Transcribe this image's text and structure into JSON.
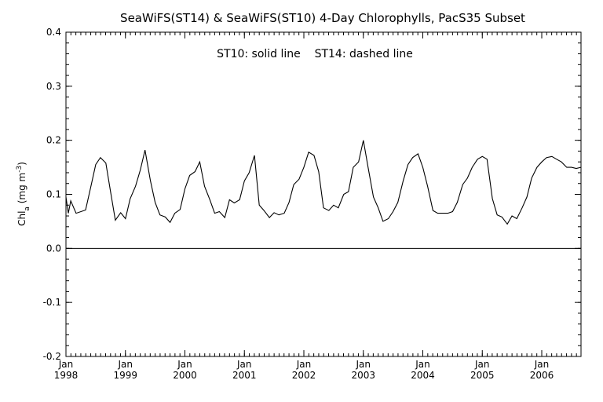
{
  "chart_data": {
    "type": "line",
    "title": "SeaWiFS(ST14) & SeaWiFS(ST10) 4-Day Chlorophylls, PacS35 Subset",
    "ylabel": "Chl",
    "ylabel_sub": "a",
    "ylabel_units_open": " (mg m",
    "ylabel_units_sup": "-3",
    "ylabel_units_close": ")",
    "xlabel": "",
    "annotation": "ST10: solid line    ST14: dashed line",
    "ylim": [
      -0.2,
      0.4
    ],
    "xlim": [
      1998.0,
      2006.66
    ],
    "y_ticks": [
      -0.2,
      -0.1,
      0.0,
      0.1,
      0.2,
      0.3,
      0.4
    ],
    "y_tick_labels": [
      "-0.2",
      "-0.1",
      "0.0",
      "0.1",
      "0.2",
      "0.3",
      "0.4"
    ],
    "x_ticks": [
      1998,
      1999,
      2000,
      2001,
      2002,
      2003,
      2004,
      2005,
      2006
    ],
    "x_tick_month": "Jan",
    "x_tick_labels": [
      "1998",
      "1999",
      "2000",
      "2001",
      "2002",
      "2003",
      "2004",
      "2005",
      "2006"
    ],
    "zero_line": 0.0,
    "grid": false,
    "series": [
      {
        "style": "solid",
        "x": [
          1998.0,
          1998.04,
          1998.08,
          1998.17,
          1998.33,
          1998.42,
          1998.5,
          1998.58,
          1998.67,
          1998.75,
          1998.83,
          1998.92,
          1999.0,
          1999.08,
          1999.17,
          1999.25,
          1999.33,
          1999.42,
          1999.5,
          1999.58,
          1999.67,
          1999.75,
          1999.83,
          1999.92,
          2000.0,
          2000.08,
          2000.17,
          2000.25,
          2000.33,
          2000.42,
          2000.5,
          2000.58,
          2000.67,
          2000.75,
          2000.83,
          2000.92,
          2001.0,
          2001.08,
          2001.17,
          2001.25,
          2001.33,
          2001.42,
          2001.5,
          2001.58,
          2001.67,
          2001.75,
          2001.83,
          2001.92,
          2002.0,
          2002.08,
          2002.17,
          2002.25,
          2002.33,
          2002.42,
          2002.5,
          2002.58,
          2002.67,
          2002.75,
          2002.83,
          2002.92,
          2003.0,
          2003.08,
          2003.17,
          2003.25,
          2003.33,
          2003.42,
          2003.5,
          2003.58,
          2003.67,
          2003.75,
          2003.83,
          2003.92,
          2004.0,
          2004.08,
          2004.17,
          2004.25,
          2004.33,
          2004.42,
          2004.5,
          2004.58,
          2004.67,
          2004.75,
          2004.83,
          2004.92,
          2005.0,
          2005.08,
          2005.17,
          2005.25,
          2005.33,
          2005.42,
          2005.5,
          2005.58,
          2005.67,
          2005.75,
          2005.83,
          2005.92,
          2006.0,
          2006.08,
          2006.17,
          2006.25,
          2006.33,
          2006.42,
          2006.5,
          2006.58,
          2006.66
        ],
        "y": [
          0.095,
          0.065,
          0.088,
          0.065,
          0.071,
          0.115,
          0.155,
          0.168,
          0.158,
          0.105,
          0.052,
          0.066,
          0.055,
          0.092,
          0.115,
          0.145,
          0.182,
          0.125,
          0.085,
          0.062,
          0.058,
          0.048,
          0.065,
          0.072,
          0.11,
          0.135,
          0.142,
          0.16,
          0.115,
          0.09,
          0.065,
          0.068,
          0.057,
          0.09,
          0.084,
          0.09,
          0.125,
          0.14,
          0.172,
          0.08,
          0.07,
          0.057,
          0.066,
          0.062,
          0.065,
          0.085,
          0.118,
          0.128,
          0.15,
          0.178,
          0.172,
          0.142,
          0.075,
          0.07,
          0.08,
          0.075,
          0.1,
          0.105,
          0.15,
          0.16,
          0.2,
          0.15,
          0.095,
          0.075,
          0.05,
          0.055,
          0.068,
          0.085,
          0.125,
          0.155,
          0.168,
          0.175,
          0.15,
          0.115,
          0.07,
          0.065,
          0.065,
          0.065,
          0.068,
          0.085,
          0.118,
          0.13,
          0.15,
          0.165,
          0.17,
          0.165,
          0.092,
          0.062,
          0.058,
          0.045,
          0.06,
          0.055,
          0.075,
          0.095,
          0.13,
          0.15,
          0.16,
          0.168,
          0.17,
          0.165,
          0.16,
          0.15,
          0.15,
          0.148,
          0.15
        ]
      }
    ]
  }
}
